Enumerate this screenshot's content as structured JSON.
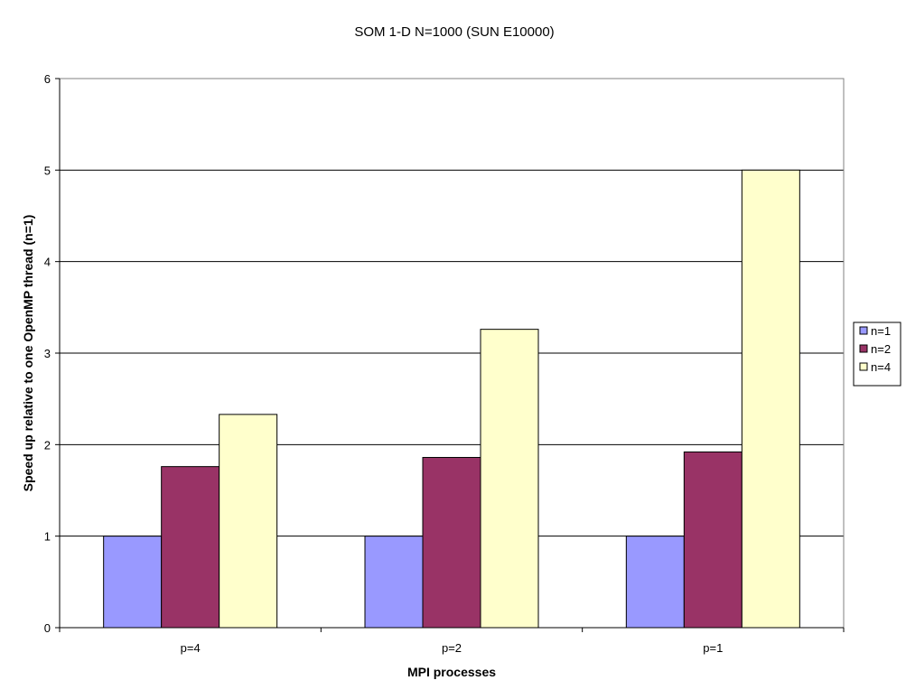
{
  "chart_data": {
    "type": "bar",
    "title": "SOM 1-D N=1000 (SUN E10000)",
    "xlabel": "MPI processes",
    "ylabel": "Speed up relative to one OpenMP thread (n=1)",
    "categories": [
      "p=4",
      "p=2",
      "p=1"
    ],
    "series": [
      {
        "name": "n=1",
        "values": [
          1,
          1,
          1
        ],
        "color": "#9999ff"
      },
      {
        "name": "n=2",
        "values": [
          1.76,
          1.86,
          1.92
        ],
        "color": "#993366"
      },
      {
        "name": "n=4",
        "values": [
          2.33,
          3.26,
          5.0
        ],
        "color": "#ffffcc"
      }
    ],
    "ylim": [
      0,
      6
    ],
    "yticks": [
      "0",
      "1",
      "2",
      "3",
      "4",
      "5",
      "6"
    ],
    "grid": true,
    "legend_position": "right"
  }
}
